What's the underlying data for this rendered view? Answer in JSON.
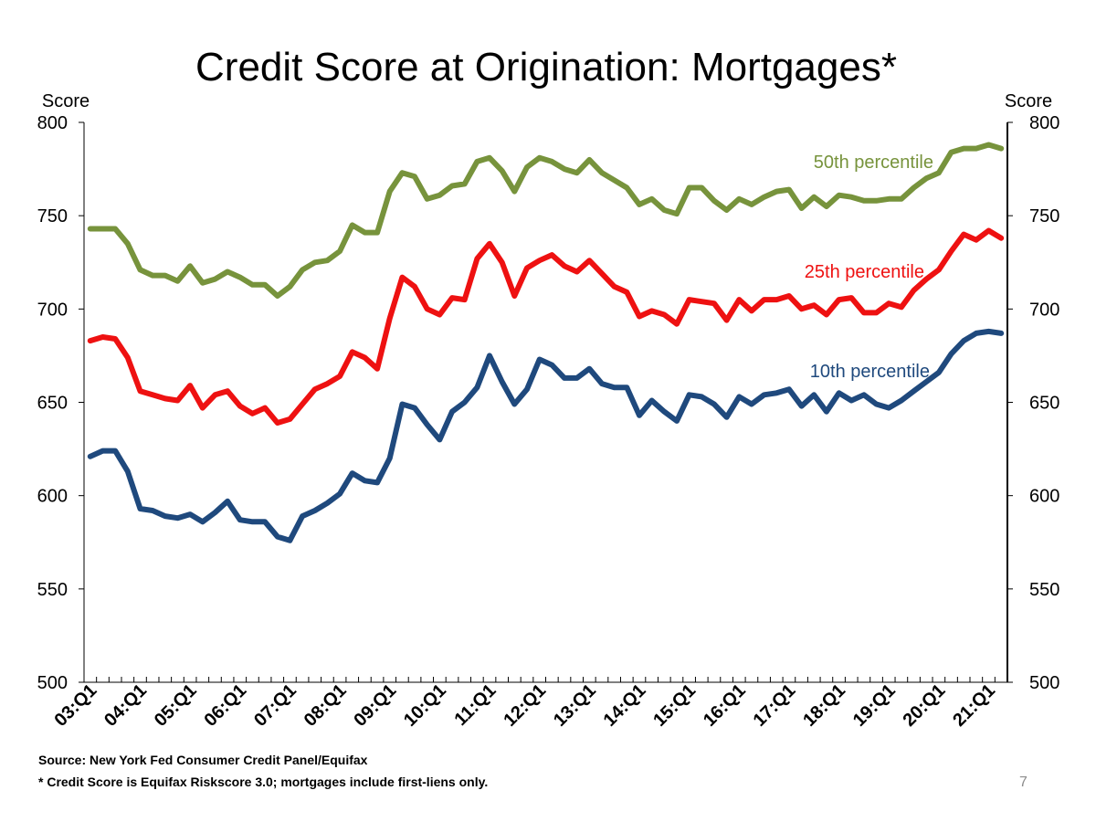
{
  "chart_data": {
    "type": "line",
    "title": "Credit Score at Origination: Mortgages*",
    "ylabel_left": "Score",
    "ylabel_right": "Score",
    "ylim": [
      500,
      800
    ],
    "yticks": [
      500,
      550,
      600,
      650,
      700,
      750,
      800
    ],
    "xtick_labels": [
      "03:Q1",
      "04:Q1",
      "05:Q1",
      "06:Q1",
      "07:Q1",
      "08:Q1",
      "09:Q1",
      "10:Q1",
      "11:Q1",
      "12:Q1",
      "13:Q1",
      "14:Q1",
      "15:Q1",
      "16:Q1",
      "17:Q1",
      "18:Q1",
      "19:Q1",
      "20:Q1",
      "21:Q1"
    ],
    "x_start": "2003:Q1",
    "grid": false,
    "series": [
      {
        "name": "50th percentile",
        "color": "#77933c",
        "values": [
          743,
          743,
          743,
          735,
          721,
          718,
          718,
          715,
          723,
          714,
          716,
          720,
          717,
          713,
          713,
          707,
          712,
          721,
          725,
          726,
          731,
          745,
          741,
          741,
          763,
          773,
          771,
          759,
          761,
          766,
          767,
          779,
          781,
          774,
          763,
          776,
          781,
          779,
          775,
          773,
          780,
          773,
          769,
          765,
          756,
          759,
          753,
          751,
          765,
          765,
          758,
          753,
          759,
          756,
          760,
          763,
          764,
          754,
          760,
          755,
          761,
          760,
          758,
          758,
          759,
          759,
          765,
          770,
          773,
          784,
          786,
          786,
          788,
          786
        ]
      },
      {
        "name": "25th percentile",
        "color": "#ee1111",
        "values": [
          683,
          685,
          684,
          674,
          656,
          654,
          652,
          651,
          659,
          647,
          654,
          656,
          648,
          644,
          647,
          639,
          641,
          649,
          657,
          660,
          664,
          677,
          674,
          668,
          695,
          717,
          712,
          700,
          697,
          706,
          705,
          727,
          735,
          725,
          707,
          722,
          726,
          729,
          723,
          720,
          726,
          719,
          712,
          709,
          696,
          699,
          697,
          692,
          705,
          704,
          703,
          694,
          705,
          699,
          705,
          705,
          707,
          700,
          702,
          697,
          705,
          706,
          698,
          698,
          703,
          701,
          710,
          716,
          721,
          731,
          740,
          737,
          742,
          738
        ]
      },
      {
        "name": "10th percentile",
        "color": "#1f497d",
        "values": [
          621,
          624,
          624,
          613,
          593,
          592,
          589,
          588,
          590,
          586,
          591,
          597,
          587,
          586,
          586,
          578,
          576,
          589,
          592,
          596,
          601,
          612,
          608,
          607,
          620,
          649,
          647,
          638,
          630,
          645,
          650,
          658,
          675,
          661,
          649,
          657,
          673,
          670,
          663,
          663,
          668,
          660,
          658,
          658,
          643,
          651,
          645,
          640,
          654,
          653,
          649,
          642,
          653,
          649,
          654,
          655,
          657,
          648,
          654,
          645,
          655,
          651,
          654,
          649,
          647,
          651,
          656,
          661,
          666,
          676,
          683,
          687,
          688,
          687
        ]
      }
    ],
    "annotations": [
      {
        "text": "50th percentile",
        "series": "50th percentile"
      },
      {
        "text": "25th percentile",
        "series": "25th percentile"
      },
      {
        "text": "10th percentile",
        "series": "10th percentile"
      }
    ]
  },
  "footnotes": {
    "source": "Source: New York Fed Consumer Credit Panel/Equifax",
    "note": "* Credit Score is Equifax Riskscore 3.0; mortgages include first-liens only."
  },
  "page_number": "7"
}
